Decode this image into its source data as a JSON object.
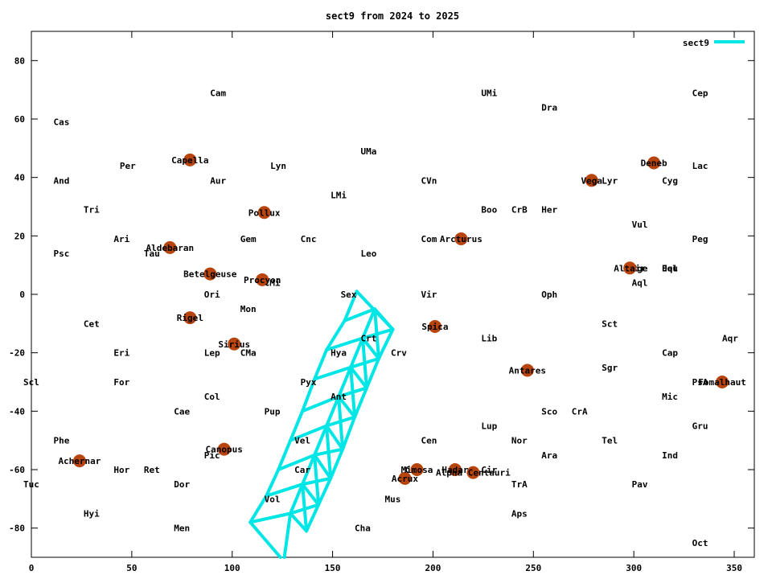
{
  "chart_data": {
    "type": "scatter",
    "title": "sect9 from 2024 to 2025",
    "xlim": [
      0,
      360
    ],
    "ylim": [
      -90,
      90
    ],
    "x_ticks": [
      0,
      50,
      100,
      150,
      200,
      250,
      300,
      350
    ],
    "y_ticks": [
      -80,
      -60,
      -40,
      -20,
      0,
      20,
      40,
      60,
      80
    ],
    "grid": false,
    "legend": {
      "position": "top-right",
      "label": "sect9",
      "color": "#00e5e5"
    },
    "constellations": [
      {
        "name": "Cam",
        "x": 89,
        "y": 69
      },
      {
        "name": "UMi",
        "x": 224,
        "y": 69
      },
      {
        "name": "Cep",
        "x": 329,
        "y": 69
      },
      {
        "name": "Dra",
        "x": 254,
        "y": 64
      },
      {
        "name": "Cas",
        "x": 11,
        "y": 59
      },
      {
        "name": "UMa",
        "x": 164,
        "y": 49
      },
      {
        "name": "Per",
        "x": 44,
        "y": 44
      },
      {
        "name": "Lyn",
        "x": 119,
        "y": 44
      },
      {
        "name": "Lac",
        "x": 329,
        "y": 44
      },
      {
        "name": "And",
        "x": 11,
        "y": 39
      },
      {
        "name": "Aur",
        "x": 89,
        "y": 39
      },
      {
        "name": "CVn",
        "x": 194,
        "y": 39
      },
      {
        "name": "Lyr",
        "x": 284,
        "y": 39
      },
      {
        "name": "Cyg",
        "x": 314,
        "y": 39
      },
      {
        "name": "LMi",
        "x": 149,
        "y": 34
      },
      {
        "name": "Tri",
        "x": 26,
        "y": 29
      },
      {
        "name": "Boo",
        "x": 224,
        "y": 29
      },
      {
        "name": "CrB",
        "x": 239,
        "y": 29
      },
      {
        "name": "Her",
        "x": 254,
        "y": 29
      },
      {
        "name": "Vul",
        "x": 299,
        "y": 24
      },
      {
        "name": "Ari",
        "x": 41,
        "y": 19
      },
      {
        "name": "Gem",
        "x": 104,
        "y": 19
      },
      {
        "name": "Cnc",
        "x": 134,
        "y": 19
      },
      {
        "name": "Com",
        "x": 194,
        "y": 19
      },
      {
        "name": "Peg",
        "x": 329,
        "y": 19
      },
      {
        "name": "Psc",
        "x": 11,
        "y": 14
      },
      {
        "name": "Tau",
        "x": 56,
        "y": 14
      },
      {
        "name": "Leo",
        "x": 164,
        "y": 14
      },
      {
        "name": "Sge",
        "x": 299,
        "y": 9
      },
      {
        "name": "Equ",
        "x": 314,
        "y": 9
      },
      {
        "name": "Del",
        "x": 314,
        "y": 9
      },
      {
        "name": "CMi",
        "x": 116,
        "y": 4
      },
      {
        "name": "Aql",
        "x": 299,
        "y": 4
      },
      {
        "name": "Ori",
        "x": 86,
        "y": 0
      },
      {
        "name": "Sex",
        "x": 154,
        "y": 0
      },
      {
        "name": "Vir",
        "x": 194,
        "y": 0
      },
      {
        "name": "Oph",
        "x": 254,
        "y": 0
      },
      {
        "name": "Mon",
        "x": 104,
        "y": -5
      },
      {
        "name": "Cet",
        "x": 26,
        "y": -10
      },
      {
        "name": "Sct",
        "x": 284,
        "y": -10
      },
      {
        "name": "Crt",
        "x": 164,
        "y": -15
      },
      {
        "name": "Lib",
        "x": 224,
        "y": -15
      },
      {
        "name": "Aqr",
        "x": 344,
        "y": -15
      },
      {
        "name": "Eri",
        "x": 41,
        "y": -20
      },
      {
        "name": "Lep",
        "x": 86,
        "y": -20
      },
      {
        "name": "CMa",
        "x": 104,
        "y": -20
      },
      {
        "name": "Hya",
        "x": 149,
        "y": -20
      },
      {
        "name": "Crv",
        "x": 179,
        "y": -20
      },
      {
        "name": "Cap",
        "x": 314,
        "y": -20
      },
      {
        "name": "Sgr",
        "x": 284,
        "y": -25
      },
      {
        "name": "Scl",
        "x": -4,
        "y": -30
      },
      {
        "name": "For",
        "x": 41,
        "y": -30
      },
      {
        "name": "Pyx",
        "x": 134,
        "y": -30
      },
      {
        "name": "PsA",
        "x": 329,
        "y": -30
      },
      {
        "name": "Col",
        "x": 86,
        "y": -35
      },
      {
        "name": "Ant",
        "x": 149,
        "y": -35
      },
      {
        "name": "Mic",
        "x": 314,
        "y": -35
      },
      {
        "name": "Cae",
        "x": 71,
        "y": -40
      },
      {
        "name": "Pup",
        "x": 116,
        "y": -40
      },
      {
        "name": "Sco",
        "x": 254,
        "y": -40
      },
      {
        "name": "CrA",
        "x": 269,
        "y": -40
      },
      {
        "name": "Lup",
        "x": 224,
        "y": -45
      },
      {
        "name": "Gru",
        "x": 329,
        "y": -45
      },
      {
        "name": "Phe",
        "x": 11,
        "y": -50
      },
      {
        "name": "Vel",
        "x": 131,
        "y": -50
      },
      {
        "name": "Cen",
        "x": 194,
        "y": -50
      },
      {
        "name": "Nor",
        "x": 239,
        "y": -50
      },
      {
        "name": "Tel",
        "x": 284,
        "y": -50
      },
      {
        "name": "Pic",
        "x": 86,
        "y": -55
      },
      {
        "name": "Ara",
        "x": 254,
        "y": -55
      },
      {
        "name": "Ind",
        "x": 314,
        "y": -55
      },
      {
        "name": "Hor",
        "x": 41,
        "y": -60
      },
      {
        "name": "Ret",
        "x": 56,
        "y": -60
      },
      {
        "name": "Car",
        "x": 131,
        "y": -60
      },
      {
        "name": "Cru",
        "x": 186,
        "y": -60
      },
      {
        "name": "Cir",
        "x": 224,
        "y": -60
      },
      {
        "name": "Tuc",
        "x": -4,
        "y": -65
      },
      {
        "name": "Dor",
        "x": 71,
        "y": -65
      },
      {
        "name": "TrA",
        "x": 239,
        "y": -65
      },
      {
        "name": "Pav",
        "x": 299,
        "y": -65
      },
      {
        "name": "Vol",
        "x": 116,
        "y": -70
      },
      {
        "name": "Mus",
        "x": 176,
        "y": -70
      },
      {
        "name": "Hyi",
        "x": 26,
        "y": -75
      },
      {
        "name": "Aps",
        "x": 239,
        "y": -75
      },
      {
        "name": "Men",
        "x": 71,
        "y": -80
      },
      {
        "name": "Cha",
        "x": 161,
        "y": -80
      },
      {
        "name": "Oct",
        "x": 329,
        "y": -85
      }
    ],
    "stars": [
      {
        "name": "Capella",
        "x": 79,
        "y": 46
      },
      {
        "name": "Deneb",
        "x": 310,
        "y": 45
      },
      {
        "name": "Vega",
        "x": 279,
        "y": 39
      },
      {
        "name": "Pollux",
        "x": 116,
        "y": 28
      },
      {
        "name": "Arcturus",
        "x": 214,
        "y": 19
      },
      {
        "name": "Aldebaran",
        "x": 69,
        "y": 16
      },
      {
        "name": "Altair",
        "x": 298,
        "y": 9
      },
      {
        "name": "Betelgeuse",
        "x": 89,
        "y": 7
      },
      {
        "name": "Procyon",
        "x": 115,
        "y": 5
      },
      {
        "name": "Rigel",
        "x": 79,
        "y": -8
      },
      {
        "name": "Spica",
        "x": 201,
        "y": -11
      },
      {
        "name": "Sirius",
        "x": 101,
        "y": -17
      },
      {
        "name": "Antares",
        "x": 247,
        "y": -26
      },
      {
        "name": "Fomalhaut",
        "x": 344,
        "y": -30
      },
      {
        "name": "Canopus",
        "x": 96,
        "y": -53
      },
      {
        "name": "Achernar",
        "x": 24,
        "y": -57
      },
      {
        "name": "Mimosa",
        "x": 192,
        "y": -60
      },
      {
        "name": "Hadar",
        "x": 211,
        "y": -60
      },
      {
        "name": "Alpha Centauri",
        "x": 220,
        "y": -61
      },
      {
        "name": "Acrux",
        "x": 186,
        "y": -63
      }
    ],
    "series": [
      {
        "name": "sect9",
        "color": "#00e5e5",
        "rails": [
          [
            [
              162,
              1
            ],
            [
              180,
              -12
            ]
          ],
          [
            [
              162,
              1
            ],
            [
              156,
              -9
            ],
            [
              147,
              -19
            ],
            [
              141,
              -29
            ],
            [
              135,
              -40
            ],
            [
              129,
              -50
            ],
            [
              123,
              -60
            ],
            [
              117,
              -69
            ],
            [
              109,
              -78
            ],
            [
              124,
              -90
            ]
          ],
          [
            [
              171,
              -5
            ],
            [
              165,
              -15
            ],
            [
              159,
              -25
            ],
            [
              153,
              -35
            ],
            [
              147,
              -45
            ],
            [
              141,
              -55
            ],
            [
              135,
              -65
            ],
            [
              129,
              -75
            ],
            [
              126,
              -90
            ]
          ],
          [
            [
              180,
              -12
            ],
            [
              173,
              -22
            ],
            [
              167,
              -32
            ],
            [
              161,
              -42
            ],
            [
              155,
              -53
            ],
            [
              149,
              -63
            ],
            [
              143,
              -72
            ],
            [
              137,
              -81
            ]
          ]
        ],
        "rungs": [
          [
            [
              156,
              -9
            ],
            [
              171,
              -5
            ],
            [
              180,
              -12
            ]
          ],
          [
            [
              147,
              -19
            ],
            [
              165,
              -15
            ],
            [
              173,
              -22
            ]
          ],
          [
            [
              141,
              -29
            ],
            [
              159,
              -25
            ],
            [
              167,
              -32
            ]
          ],
          [
            [
              135,
              -40
            ],
            [
              153,
              -35
            ],
            [
              161,
              -42
            ]
          ],
          [
            [
              129,
              -50
            ],
            [
              147,
              -45
            ],
            [
              155,
              -53
            ]
          ],
          [
            [
              123,
              -60
            ],
            [
              141,
              -55
            ],
            [
              149,
              -63
            ]
          ],
          [
            [
              117,
              -69
            ],
            [
              135,
              -65
            ],
            [
              143,
              -72
            ]
          ],
          [
            [
              109,
              -78
            ],
            [
              129,
              -75
            ],
            [
              137,
              -81
            ]
          ]
        ],
        "diagonals": [
          [
            [
              171,
              -5
            ],
            [
              173,
              -22
            ]
          ],
          [
            [
              180,
              -12
            ],
            [
              165,
              -15
            ]
          ],
          [
            [
              165,
              -15
            ],
            [
              167,
              -32
            ]
          ],
          [
            [
              173,
              -22
            ],
            [
              159,
              -25
            ]
          ],
          [
            [
              159,
              -25
            ],
            [
              161,
              -42
            ]
          ],
          [
            [
              167,
              -32
            ],
            [
              153,
              -35
            ]
          ],
          [
            [
              153,
              -35
            ],
            [
              155,
              -53
            ]
          ],
          [
            [
              161,
              -42
            ],
            [
              147,
              -45
            ]
          ],
          [
            [
              147,
              -45
            ],
            [
              149,
              -63
            ]
          ],
          [
            [
              155,
              -53
            ],
            [
              141,
              -55
            ]
          ],
          [
            [
              141,
              -55
            ],
            [
              143,
              -72
            ]
          ],
          [
            [
              149,
              -63
            ],
            [
              135,
              -65
            ]
          ],
          [
            [
              135,
              -65
            ],
            [
              137,
              -81
            ]
          ],
          [
            [
              143,
              -72
            ],
            [
              129,
              -75
            ]
          ]
        ]
      }
    ]
  }
}
